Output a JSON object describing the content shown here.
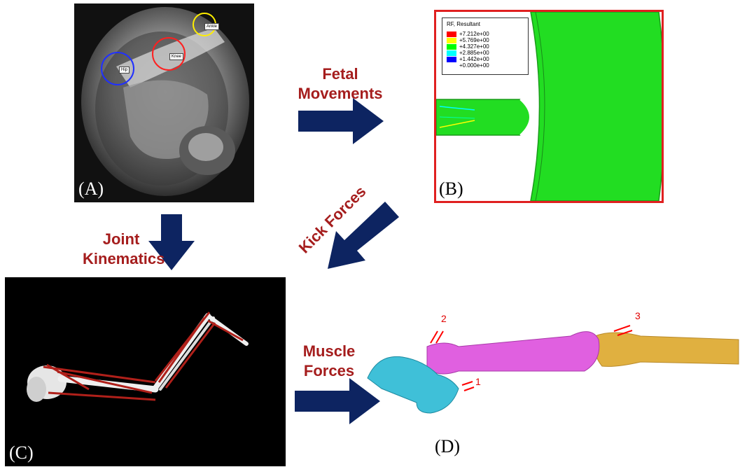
{
  "panels": {
    "A": {
      "letter": "(A)",
      "joint_tags": {
        "hip": "Hip",
        "knee": "Knee",
        "ankle": "Ankle"
      }
    },
    "B": {
      "letter": "(B)",
      "legend_title": "RF, Resultant",
      "legend_entries": [
        {
          "value": "+7.212e+00",
          "color": "#ff0000"
        },
        {
          "value": "+5.769e+00",
          "color": "#ffff00"
        },
        {
          "value": "+4.327e+00",
          "color": "#00ff00"
        },
        {
          "value": "+2.885e+00",
          "color": "#00ffff"
        },
        {
          "value": "+1.442e+00",
          "color": "#0000ff"
        },
        {
          "value": "+0.000e+00",
          "color": "#0000ff"
        }
      ]
    },
    "C": {
      "letter": "(C)"
    },
    "D": {
      "letter": "(D)",
      "markers": [
        "1",
        "2",
        "3"
      ]
    }
  },
  "flows": {
    "fetal_movements": "Fetal Movements",
    "joint_kinematics": "Joint Kinematics",
    "kick_forces": "Kick Forces",
    "muscle_forces": "Muscle Forces"
  },
  "colors": {
    "arrow": "#0d2461",
    "label_red": "#a51d1d",
    "panel_b_border": "#e02020",
    "fe_green": "#22dd22",
    "muscle_red": "#b0201a",
    "pelvis": "#3fc0d8",
    "femur": "#e060e0",
    "tibia": "#e0b040",
    "force_arrow": "#ff0000",
    "hip_circle": "#2030ff",
    "knee_circle": "#ff2020",
    "ankle_circle": "#ffee00"
  }
}
